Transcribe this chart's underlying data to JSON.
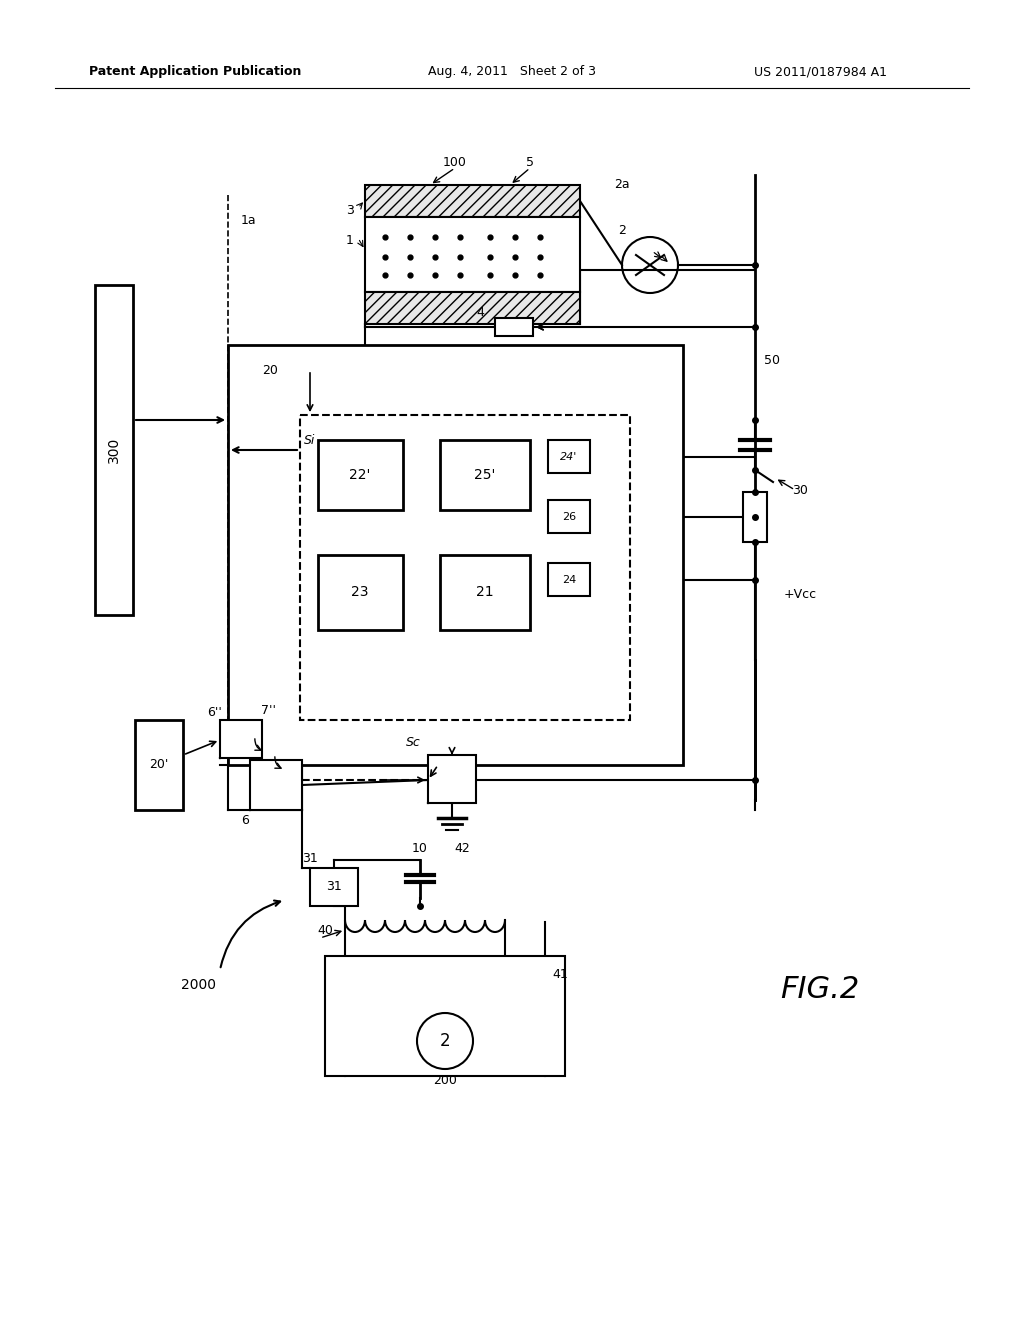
{
  "bg_color": "#ffffff",
  "header_left": "Patent Application Publication",
  "header_mid": "Aug. 4, 2011   Sheet 2 of 3",
  "header_right": "US 2011/0187984 A1",
  "fig_label": "FIG.2"
}
